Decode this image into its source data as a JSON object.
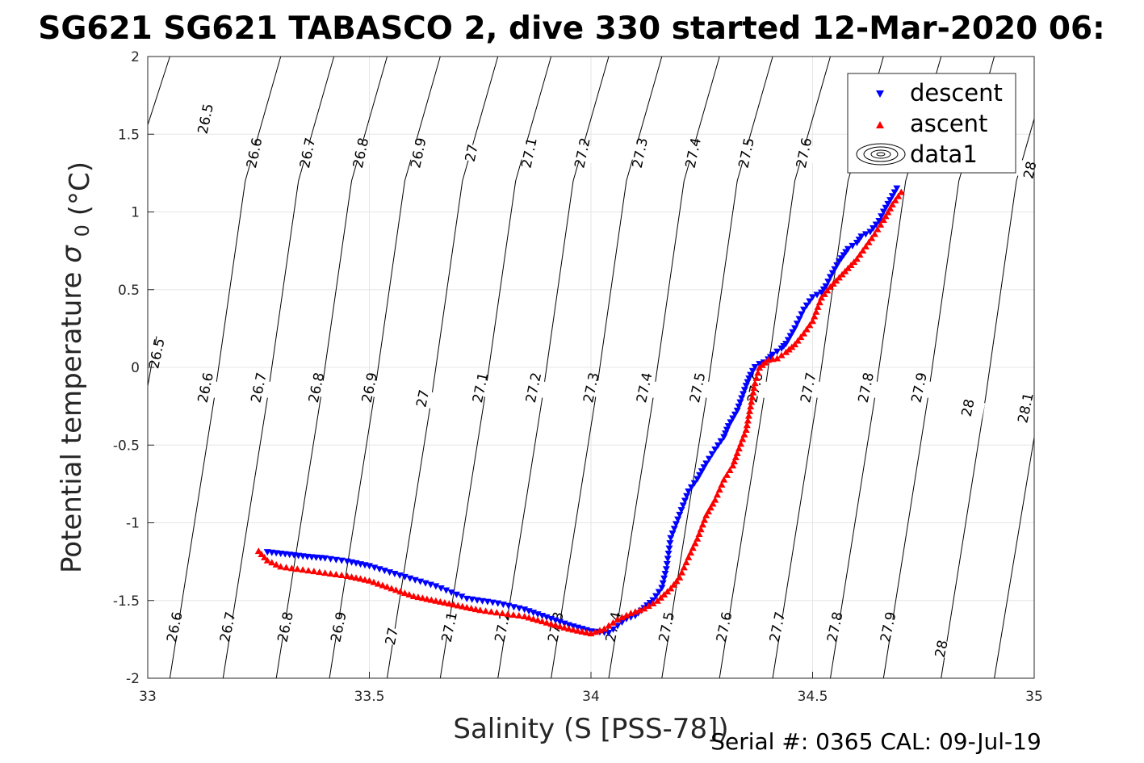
{
  "chart_data": {
    "type": "scatter",
    "title": "SG621 SG621 TABASCO 2, dive 330 started 12-Mar-2020 06:",
    "xlabel": "Salinity (S [PSS-78])",
    "ylabel": "Potential temperature",
    "ylabel_sigma": "σ",
    "ylabel_sub": "0",
    "ylabel_unit": "(°C)",
    "xlim": [
      33,
      35
    ],
    "ylim": [
      -2,
      2
    ],
    "xticks": [
      "33",
      "33.5",
      "34",
      "34.5",
      "35"
    ],
    "yticks": [
      "2",
      "1.5",
      "1",
      "0.5",
      "0",
      "-0.5",
      "-1",
      "-1.5",
      "-2"
    ],
    "grid": true,
    "legend_position": "top-right",
    "legend": [
      {
        "name": "descent",
        "marker": "triangle-down",
        "color": "#0000ff"
      },
      {
        "name": "ascent",
        "marker": "triangle-up",
        "color": "#ff0000"
      },
      {
        "name": "data1",
        "marker": "contour-ellipses",
        "color": "#000000"
      }
    ],
    "series": [
      {
        "name": "descent",
        "color": "#0000ff",
        "x": [
          33.27,
          33.3,
          33.33,
          33.36,
          33.4,
          33.45,
          33.5,
          33.58,
          33.65,
          33.72,
          33.79,
          33.85,
          33.9,
          33.95,
          34.0,
          34.04,
          34.08,
          34.1,
          34.12,
          34.14,
          34.16,
          34.17,
          34.18,
          34.2,
          34.22,
          34.24,
          34.26,
          34.28,
          34.3,
          34.31,
          34.33,
          34.34,
          34.35,
          34.36,
          34.37,
          34.38,
          34.39,
          34.4,
          34.41,
          34.43,
          34.44,
          34.45,
          34.46,
          34.47,
          34.48,
          34.5,
          34.52,
          34.53,
          34.54,
          34.55,
          34.56,
          34.57,
          34.58,
          34.6,
          34.61,
          34.63,
          34.65,
          34.66,
          34.67,
          34.68,
          34.69
        ],
        "y": [
          -1.19,
          -1.2,
          -1.21,
          -1.22,
          -1.23,
          -1.25,
          -1.28,
          -1.35,
          -1.41,
          -1.49,
          -1.52,
          -1.56,
          -1.61,
          -1.66,
          -1.7,
          -1.71,
          -1.62,
          -1.6,
          -1.55,
          -1.5,
          -1.42,
          -1.3,
          -1.1,
          -0.95,
          -0.8,
          -0.72,
          -0.62,
          -0.53,
          -0.45,
          -0.38,
          -0.28,
          -0.2,
          -0.12,
          -0.05,
          0.0,
          0.02,
          0.03,
          0.05,
          0.08,
          0.12,
          0.15,
          0.2,
          0.25,
          0.31,
          0.37,
          0.45,
          0.48,
          0.52,
          0.58,
          0.63,
          0.68,
          0.72,
          0.76,
          0.8,
          0.84,
          0.87,
          0.94,
          1.0,
          1.05,
          1.1,
          1.15
        ]
      },
      {
        "name": "ascent",
        "color": "#ff0000",
        "x": [
          33.25,
          33.27,
          33.3,
          33.35,
          33.4,
          33.45,
          33.5,
          33.55,
          33.6,
          33.65,
          33.7,
          33.75,
          33.8,
          33.85,
          33.9,
          33.95,
          34.0,
          34.03,
          34.06,
          34.09,
          34.12,
          34.15,
          34.18,
          34.2,
          34.22,
          34.24,
          34.26,
          34.28,
          34.3,
          34.32,
          34.33,
          34.35,
          34.36,
          34.37,
          34.38,
          34.4,
          34.42,
          34.44,
          34.46,
          34.48,
          34.5,
          34.52,
          34.54,
          34.56,
          34.58,
          34.6,
          34.62,
          34.64,
          34.66,
          34.68,
          34.7
        ],
        "y": [
          -1.18,
          -1.24,
          -1.28,
          -1.3,
          -1.32,
          -1.34,
          -1.37,
          -1.42,
          -1.47,
          -1.5,
          -1.53,
          -1.56,
          -1.58,
          -1.6,
          -1.64,
          -1.68,
          -1.71,
          -1.68,
          -1.62,
          -1.58,
          -1.55,
          -1.5,
          -1.42,
          -1.35,
          -1.22,
          -1.1,
          -0.95,
          -0.85,
          -0.72,
          -0.63,
          -0.55,
          -0.4,
          -0.25,
          -0.1,
          0.0,
          0.05,
          0.06,
          0.1,
          0.15,
          0.22,
          0.3,
          0.45,
          0.52,
          0.58,
          0.64,
          0.7,
          0.78,
          0.86,
          0.95,
          1.05,
          1.13
        ]
      }
    ],
    "contours": [
      {
        "label": "26.5",
        "pts": [
          [
            33.0,
            1.56
          ],
          [
            33.05,
            2.0
          ]
        ]
      },
      {
        "label": "26.5",
        "pts": [
          [
            33.0,
            -0.12
          ],
          [
            33.02,
            0.2
          ]
        ]
      },
      {
        "label": "26.6",
        "pts": [
          [
            33.05,
            -2.0
          ],
          [
            33.15,
            -0.2
          ],
          [
            33.22,
            1.2
          ],
          [
            33.3,
            2.0
          ]
        ]
      },
      {
        "label": "26.7",
        "pts": [
          [
            33.17,
            -2.0
          ],
          [
            33.27,
            -0.2
          ],
          [
            33.34,
            1.2
          ],
          [
            33.42,
            2.0
          ]
        ]
      },
      {
        "label": "26.8",
        "pts": [
          [
            33.29,
            -2.0
          ],
          [
            33.39,
            -0.2
          ],
          [
            33.46,
            1.2
          ],
          [
            33.54,
            2.0
          ]
        ]
      },
      {
        "label": "26.9",
        "pts": [
          [
            33.41,
            -2.0
          ],
          [
            33.51,
            -0.2
          ],
          [
            33.58,
            1.2
          ],
          [
            33.66,
            2.0
          ]
        ]
      },
      {
        "label": "27",
        "pts": [
          [
            33.54,
            -2.0
          ],
          [
            33.64,
            -0.2
          ],
          [
            33.71,
            1.2
          ],
          [
            33.79,
            2.0
          ]
        ]
      },
      {
        "label": "27.1",
        "pts": [
          [
            33.66,
            -2.0
          ],
          [
            33.76,
            -0.2
          ],
          [
            33.83,
            1.2
          ],
          [
            33.91,
            2.0
          ]
        ]
      },
      {
        "label": "27.2",
        "pts": [
          [
            33.79,
            -2.0
          ],
          [
            33.89,
            -0.2
          ],
          [
            33.96,
            1.2
          ],
          [
            34.04,
            2.0
          ]
        ]
      },
      {
        "label": "27.3",
        "pts": [
          [
            33.91,
            -2.0
          ],
          [
            34.01,
            -0.2
          ],
          [
            34.08,
            1.2
          ],
          [
            34.16,
            2.0
          ]
        ]
      },
      {
        "label": "27.4",
        "pts": [
          [
            34.04,
            -2.0
          ],
          [
            34.14,
            -0.2
          ],
          [
            34.21,
            1.2
          ],
          [
            34.29,
            2.0
          ]
        ]
      },
      {
        "label": "27.5",
        "pts": [
          [
            34.16,
            -2.0
          ],
          [
            34.26,
            -0.2
          ],
          [
            34.33,
            1.2
          ],
          [
            34.41,
            2.0
          ]
        ]
      },
      {
        "label": "27.6",
        "pts": [
          [
            34.29,
            -2.0
          ],
          [
            34.39,
            -0.2
          ],
          [
            34.46,
            1.2
          ],
          [
            34.54,
            2.0
          ]
        ]
      },
      {
        "label": "27.7",
        "pts": [
          [
            34.41,
            -2.0
          ],
          [
            34.51,
            -0.2
          ],
          [
            34.58,
            1.2
          ],
          [
            34.66,
            2.0
          ]
        ]
      },
      {
        "label": "27.8",
        "pts": [
          [
            34.54,
            -2.0
          ],
          [
            34.64,
            -0.2
          ],
          [
            34.71,
            1.2
          ],
          [
            34.79,
            2.0
          ]
        ]
      },
      {
        "label": "27.9",
        "pts": [
          [
            34.66,
            -2.0
          ],
          [
            34.76,
            -0.2
          ],
          [
            34.83,
            1.2
          ],
          [
            34.91,
            2.0
          ]
        ]
      },
      {
        "label": "28",
        "pts": [
          [
            34.79,
            -2.0
          ],
          [
            34.89,
            -0.2
          ],
          [
            34.96,
            1.2
          ],
          [
            35.0,
            1.6
          ]
        ]
      },
      {
        "label": "28.1",
        "pts": [
          [
            34.91,
            -2.0
          ],
          [
            35.0,
            -0.45
          ]
        ]
      }
    ],
    "contour_labels": [
      {
        "text": "26.5",
        "x": 33.13,
        "y": 1.6
      },
      {
        "text": "26.6",
        "x": 33.24,
        "y": 1.38
      },
      {
        "text": "26.7",
        "x": 33.36,
        "y": 1.38
      },
      {
        "text": "26.8",
        "x": 33.48,
        "y": 1.38
      },
      {
        "text": "26.9",
        "x": 33.61,
        "y": 1.38
      },
      {
        "text": "27",
        "x": 33.73,
        "y": 1.38
      },
      {
        "text": "27.1",
        "x": 33.86,
        "y": 1.38
      },
      {
        "text": "27.2",
        "x": 33.98,
        "y": 1.38
      },
      {
        "text": "27.3",
        "x": 34.11,
        "y": 1.38
      },
      {
        "text": "27.4",
        "x": 34.23,
        "y": 1.38
      },
      {
        "text": "27.5",
        "x": 34.35,
        "y": 1.38
      },
      {
        "text": "27.6",
        "x": 34.48,
        "y": 1.38
      },
      {
        "text": "28",
        "x": 34.99,
        "y": 1.27
      },
      {
        "text": "26.5",
        "x": 33.02,
        "y": 0.09
      },
      {
        "text": "26.6",
        "x": 33.13,
        "y": -0.13
      },
      {
        "text": "26.7",
        "x": 33.25,
        "y": -0.13
      },
      {
        "text": "26.8",
        "x": 33.38,
        "y": -0.13
      },
      {
        "text": "26.9",
        "x": 33.5,
        "y": -0.13
      },
      {
        "text": "27",
        "x": 33.62,
        "y": -0.2
      },
      {
        "text": "27.1",
        "x": 33.75,
        "y": -0.13
      },
      {
        "text": "27.2",
        "x": 33.87,
        "y": -0.13
      },
      {
        "text": "27.3",
        "x": 34.0,
        "y": -0.13
      },
      {
        "text": "27.4",
        "x": 34.12,
        "y": -0.13
      },
      {
        "text": "27.5",
        "x": 34.24,
        "y": -0.13
      },
      {
        "text": "27.6",
        "x": 34.37,
        "y": -0.13
      },
      {
        "text": "27.7",
        "x": 34.49,
        "y": -0.13
      },
      {
        "text": "27.8",
        "x": 34.62,
        "y": -0.13
      },
      {
        "text": "27.9",
        "x": 34.74,
        "y": -0.13
      },
      {
        "text": "28",
        "x": 34.85,
        "y": -0.26
      },
      {
        "text": "28.1",
        "x": 34.98,
        "y": -0.26
      },
      {
        "text": "26.6",
        "x": 33.06,
        "y": -1.67
      },
      {
        "text": "26.7",
        "x": 33.18,
        "y": -1.67
      },
      {
        "text": "26.8",
        "x": 33.31,
        "y": -1.67
      },
      {
        "text": "26.9",
        "x": 33.43,
        "y": -1.67
      },
      {
        "text": "27",
        "x": 33.55,
        "y": -1.73
      },
      {
        "text": "27.1",
        "x": 33.68,
        "y": -1.67
      },
      {
        "text": "27.2",
        "x": 33.8,
        "y": -1.67
      },
      {
        "text": "27.3",
        "x": 33.92,
        "y": -1.67
      },
      {
        "text": "27.4",
        "x": 34.05,
        "y": -1.67
      },
      {
        "text": "27.5",
        "x": 34.17,
        "y": -1.67
      },
      {
        "text": "27.6",
        "x": 34.3,
        "y": -1.67
      },
      {
        "text": "27.7",
        "x": 34.42,
        "y": -1.67
      },
      {
        "text": "27.8",
        "x": 34.55,
        "y": -1.67
      },
      {
        "text": "27.9",
        "x": 34.67,
        "y": -1.67
      },
      {
        "text": "28",
        "x": 34.79,
        "y": -1.81
      }
    ]
  },
  "footer": {
    "serial": "Serial #: 0365  CAL: 09-Jul-19"
  }
}
